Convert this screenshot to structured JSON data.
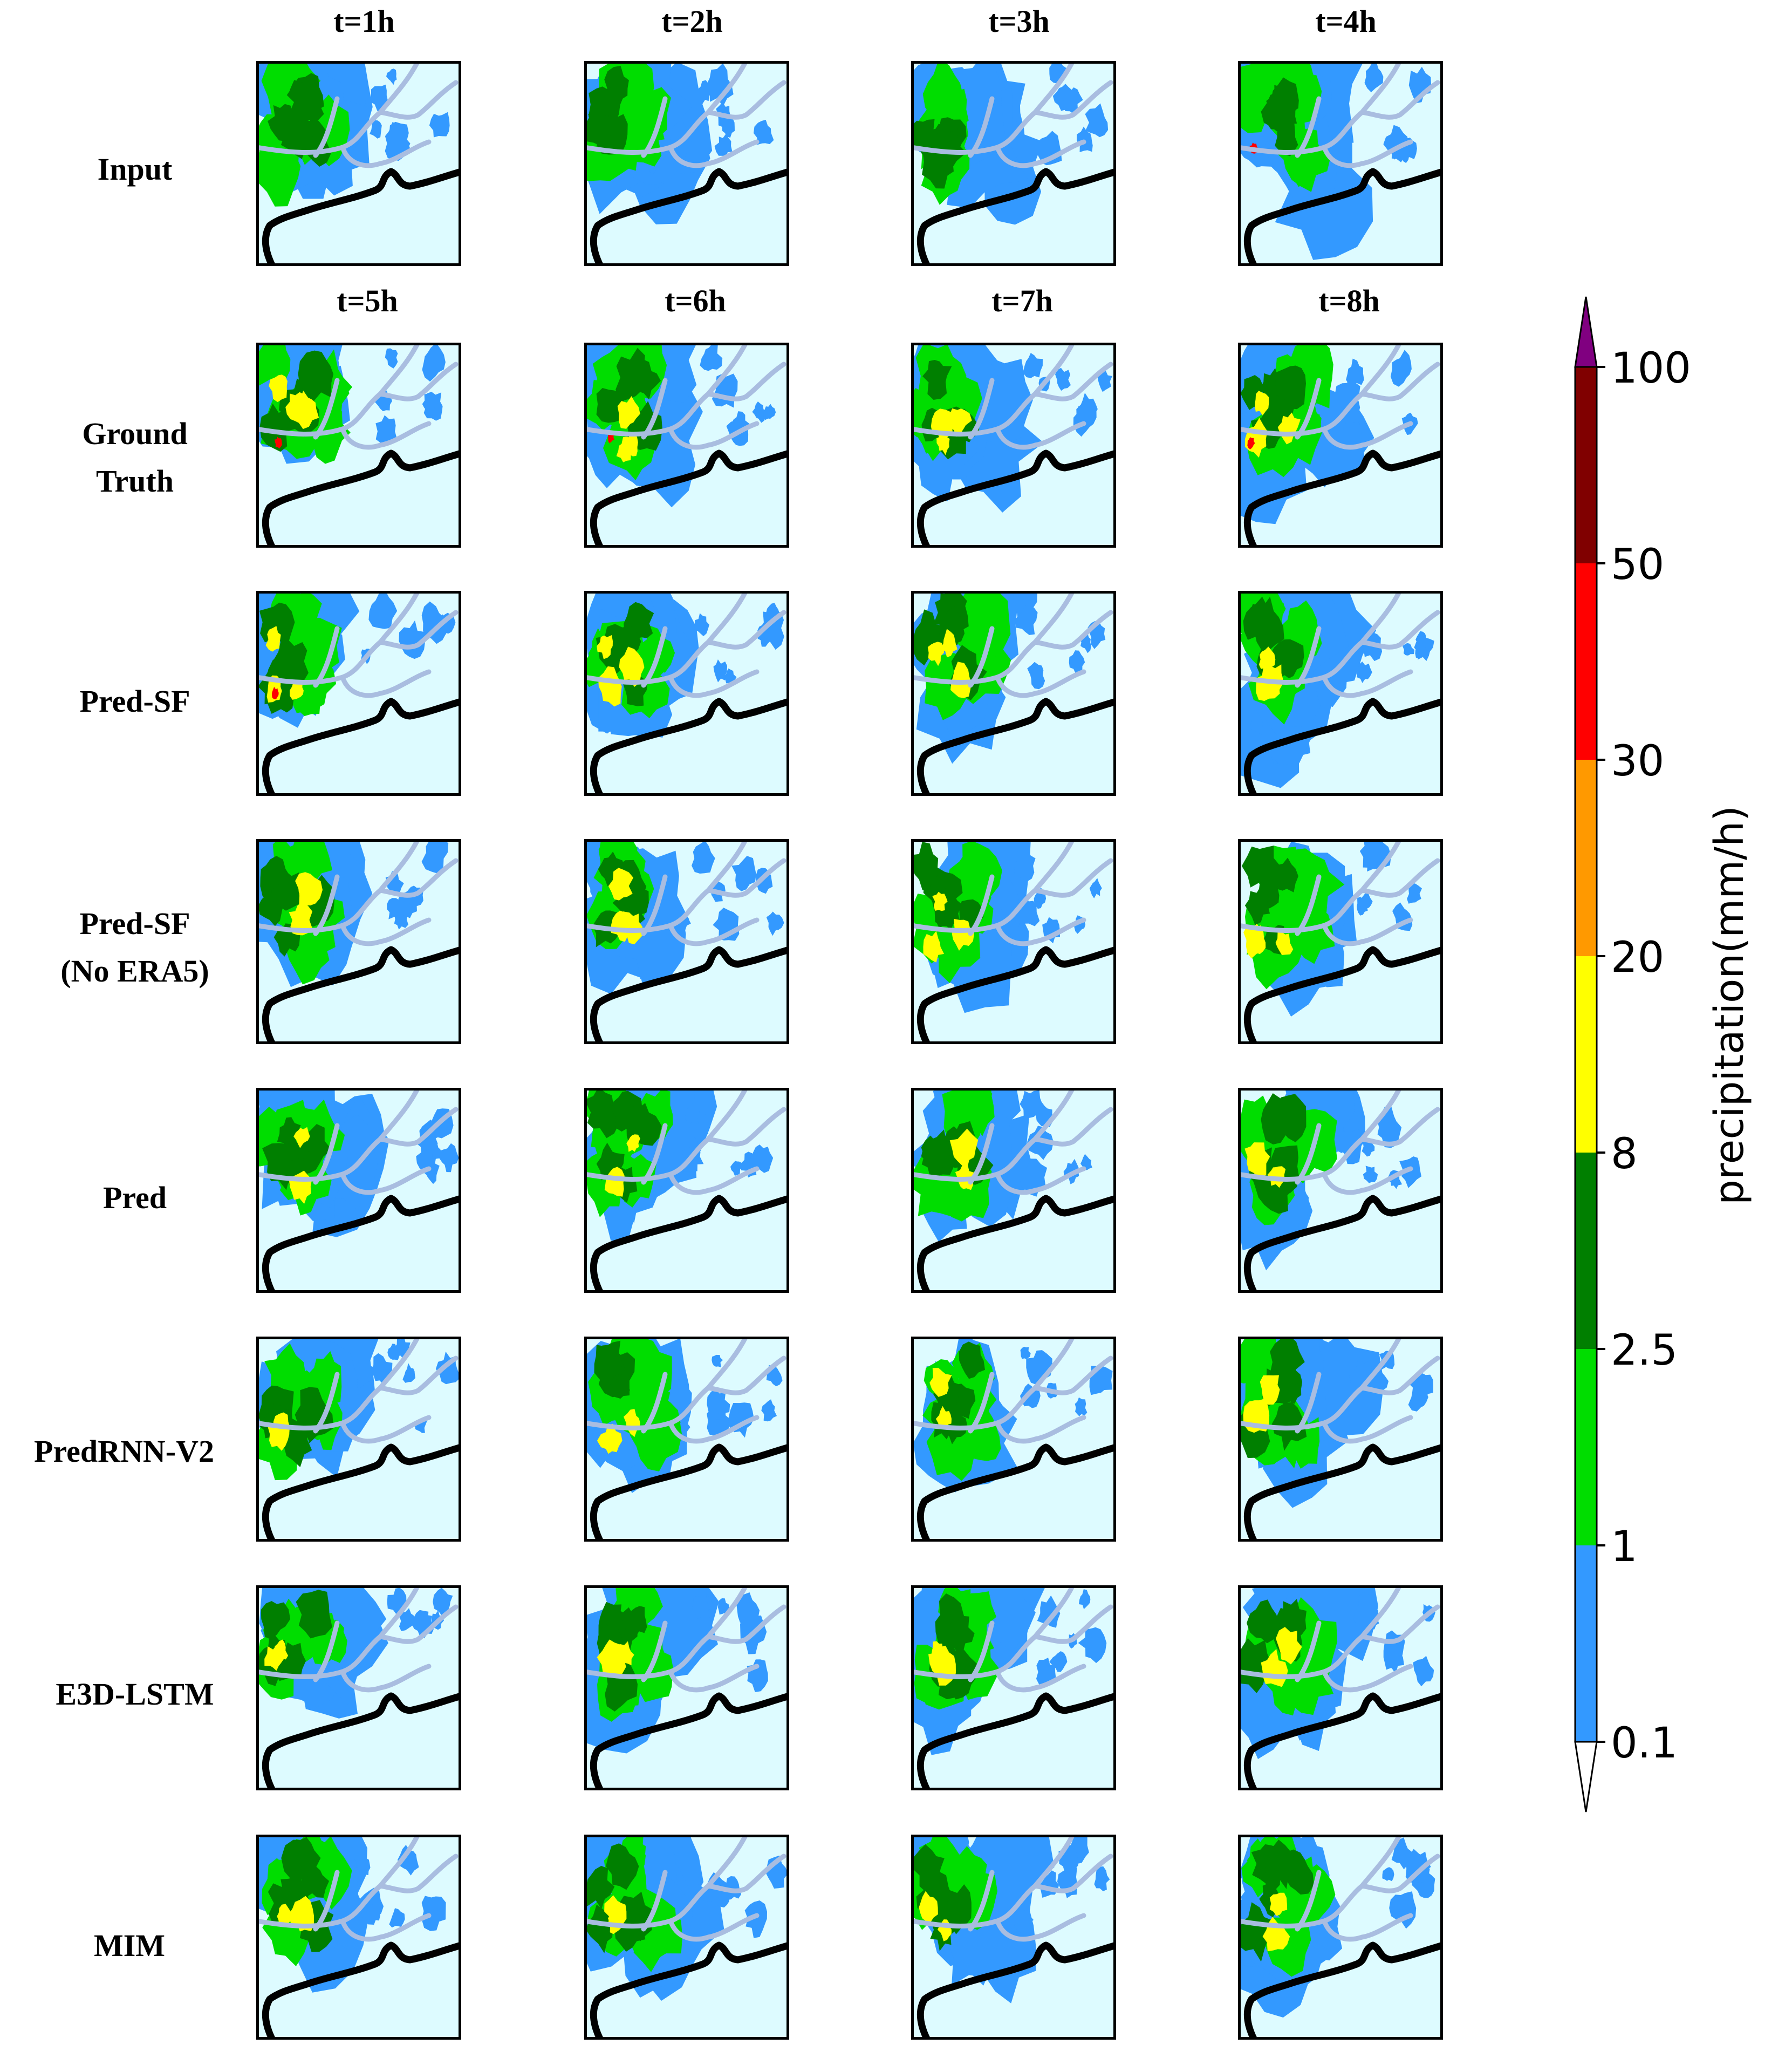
{
  "chart_data": {
    "type": "heatmap",
    "title": "",
    "input_time_labels": [
      "t=1h",
      "t=2h",
      "t=3h",
      "t=4h"
    ],
    "output_time_labels": [
      "t=5h",
      "t=6h",
      "t=7h",
      "t=8h"
    ],
    "row_labels": [
      "Input",
      "Ground\nTruth",
      "Pred-SF",
      "Pred-SF\n(No ERA5)",
      "Pred",
      "PredRNN-V2",
      "E3D-LSTM",
      "MIM"
    ],
    "colorbar": {
      "label": "precipitation(mm/h)",
      "levels": [
        "0.1",
        "1",
        "2.5",
        "8",
        "20",
        "30",
        "50",
        "100"
      ],
      "colors": [
        "#ffffff",
        "#3399ff",
        "#00dd00",
        "#007f00",
        "#ffff00",
        "#ff9900",
        "#ff0000",
        "#800000",
        "#800080"
      ],
      "extend": "both"
    }
  },
  "map_colors": {
    "background": "#ddfbff",
    "coast": "#000000",
    "river": "#a9bde0"
  }
}
